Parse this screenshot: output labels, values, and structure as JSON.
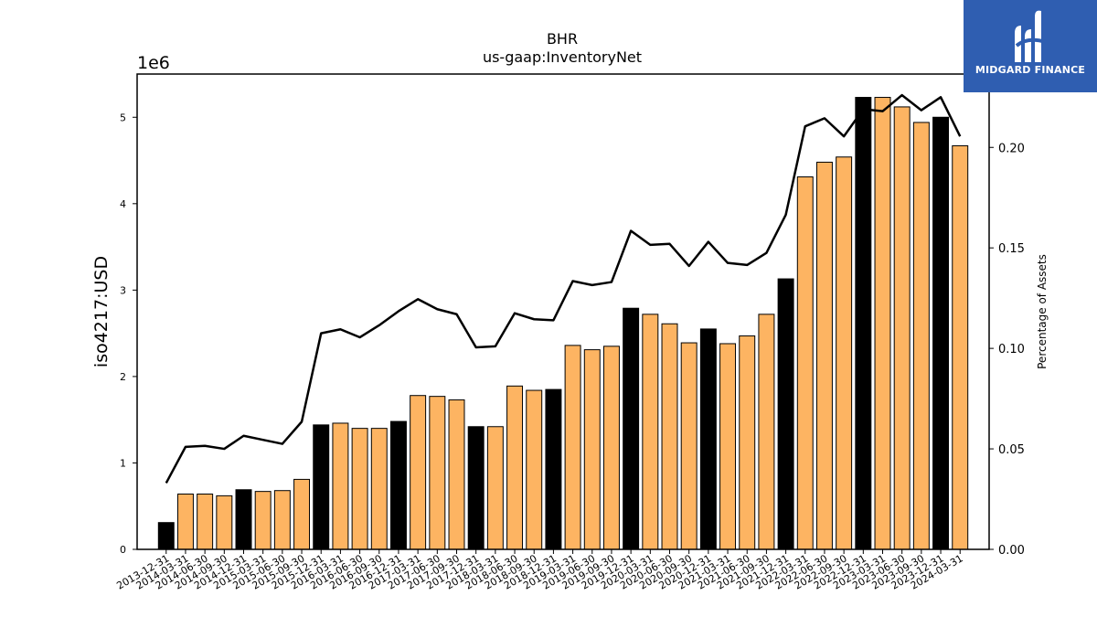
{
  "chart_data": {
    "type": "bar",
    "title": "BHR",
    "subtitle": "us-gaap:InventoryNet",
    "ylabel": "iso4217:USD",
    "y_offset_label": "1e6",
    "y2label": "Percentage of Assets",
    "ylim": [
      0,
      5500000
    ],
    "y2lim": [
      0,
      0.2365
    ],
    "yticks": [
      "0",
      "1",
      "2",
      "3",
      "4",
      "5"
    ],
    "y2ticks": [
      "0.00",
      "0.05",
      "0.10",
      "0.15",
      "0.20"
    ],
    "categories": [
      "2013-12-31",
      "2014-03-31",
      "2014-06-30",
      "2014-09-30",
      "2014-12-31",
      "2015-03-31",
      "2015-06-30",
      "2015-09-30",
      "2015-12-31",
      "2016-03-31",
      "2016-06-30",
      "2016-09-30",
      "2016-12-31",
      "2017-03-31",
      "2017-06-30",
      "2017-09-30",
      "2017-12-31",
      "2018-03-31",
      "2018-06-30",
      "2018-09-30",
      "2018-12-31",
      "2019-03-31",
      "2019-06-30",
      "2019-09-30",
      "2019-12-31",
      "2020-03-31",
      "2020-06-30",
      "2020-09-30",
      "2020-12-31",
      "2021-03-31",
      "2021-06-30",
      "2021-09-30",
      "2021-12-31",
      "2022-03-31",
      "2022-06-30",
      "2022-09-30",
      "2022-12-31",
      "2023-03-31",
      "2023-06-30",
      "2023-09-30",
      "2023-12-31",
      "2024-03-31"
    ],
    "series": [
      {
        "type": "bar",
        "values": [
          310000,
          640000,
          640000,
          620000,
          690000,
          670000,
          680000,
          810000,
          1440000,
          1460000,
          1400000,
          1400000,
          1480000,
          1780000,
          1770000,
          1730000,
          1420000,
          1420000,
          1890000,
          1840000,
          1850000,
          2360000,
          2310000,
          2350000,
          2790000,
          2720000,
          2610000,
          2390000,
          2550000,
          2380000,
          2470000,
          2720000,
          3130000,
          4310000,
          4480000,
          4540000,
          5230000,
          5230000,
          5120000,
          4940000,
          5000000,
          4670000
        ],
        "year_end_flags": [
          1,
          0,
          0,
          0,
          1,
          0,
          0,
          0,
          1,
          0,
          0,
          0,
          1,
          0,
          0,
          0,
          1,
          0,
          0,
          0,
          1,
          0,
          0,
          0,
          1,
          0,
          0,
          0,
          1,
          0,
          0,
          0,
          1,
          0,
          0,
          0,
          1,
          0,
          0,
          0,
          1,
          0
        ]
      },
      {
        "type": "line",
        "axis": "right",
        "values": [
          0.033,
          0.051,
          0.0515,
          0.05,
          0.0565,
          0.0545,
          0.0525,
          0.0635,
          0.1075,
          0.1095,
          0.1055,
          0.1115,
          0.1185,
          0.1245,
          0.1195,
          0.117,
          0.1005,
          0.101,
          0.1175,
          0.1145,
          0.114,
          0.1335,
          0.1315,
          0.133,
          0.1585,
          0.1515,
          0.152,
          0.141,
          0.153,
          0.1425,
          0.1415,
          0.1475,
          0.1665,
          0.2105,
          0.2145,
          0.2055,
          0.219,
          0.218,
          0.226,
          0.2185,
          0.225,
          0.2055
        ]
      }
    ],
    "colors": {
      "bar_regular": "#fdb462",
      "bar_year_end": "#000000",
      "bar_edge": "#000000",
      "line": "#000000"
    }
  },
  "logo": {
    "text": "MIDGARD FINANCE",
    "background": "#2f5eb1"
  }
}
